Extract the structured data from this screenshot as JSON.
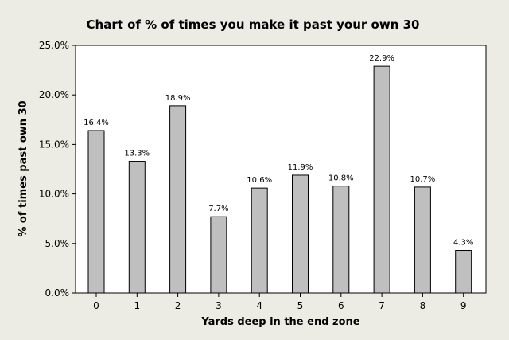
{
  "chart_data": {
    "type": "bar",
    "title": "Chart of % of times you make it past your own 30",
    "xlabel": "Yards deep in the end zone",
    "ylabel": "% of times past own 30",
    "categories": [
      "0",
      "1",
      "2",
      "3",
      "4",
      "5",
      "6",
      "7",
      "8",
      "9"
    ],
    "values": [
      16.4,
      13.3,
      18.9,
      7.7,
      10.6,
      11.9,
      10.8,
      22.9,
      10.7,
      4.3
    ],
    "data_labels": [
      "16.4%",
      "13.3%",
      "18.9%",
      "7.7%",
      "10.6%",
      "11.9%",
      "10.8%",
      "22.9%",
      "10.7%",
      "4.3%"
    ],
    "ylim": [
      0,
      25
    ],
    "yticks": [
      0,
      5,
      10,
      15,
      20,
      25
    ],
    "ytick_labels": [
      "0.0%",
      "5.0%",
      "10.0%",
      "15.0%",
      "20.0%",
      "25.0%"
    ],
    "grid": false,
    "colors": {
      "background": "#ecebe4",
      "plot_background": "#ffffff",
      "bar_fill": "#bfbfbf",
      "bar_stroke": "#000000"
    }
  }
}
